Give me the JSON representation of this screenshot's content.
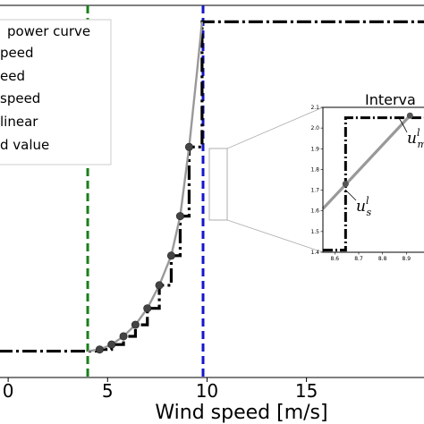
{
  "chart_data": [
    {
      "type": "line",
      "xlabel": "Wind speed [m/s]",
      "xlim": [
        -0.5,
        21
      ],
      "ylim": [
        -0.08,
        1.05
      ],
      "xticks": [
        "0",
        "5",
        "10",
        "15"
      ],
      "xtick_values": [
        0,
        5,
        10,
        15
      ],
      "grid": false,
      "legend": {
        "placement": "top-left",
        "entries": [
          "power curve",
          "peed",
          "eed",
          "speed",
          "linear",
          "d value"
        ]
      },
      "vlines": [
        {
          "x": 4,
          "color": "#1a7f1a",
          "style": "dashed"
        },
        {
          "x": 9.8,
          "color": "#1515cc",
          "style": "dashed"
        }
      ],
      "series": [
        {
          "style": "dashdot",
          "color": "#000000",
          "shape": "step",
          "x": [
            -0.5,
            4,
            4.6,
            4.6,
            5.2,
            5.2,
            5.8,
            5.8,
            6.4,
            6.4,
            7.0,
            7.0,
            7.6,
            7.6,
            8.2,
            8.2,
            8.65,
            8.65,
            9.1,
            9.1,
            9.75,
            9.75,
            21
          ],
          "y": [
            0,
            0,
            0,
            0.005,
            0.005,
            0.02,
            0.02,
            0.045,
            0.045,
            0.08,
            0.08,
            0.13,
            0.13,
            0.2,
            0.2,
            0.29,
            0.29,
            0.41,
            0.41,
            0.62,
            0.62,
            1.0,
            1.0
          ]
        },
        {
          "color": "#999999",
          "shape": "line",
          "x": [
            4,
            4.6,
            5.2,
            5.8,
            6.4,
            7.0,
            7.6,
            8.2,
            8.65,
            9.1,
            9.5,
            9.75
          ],
          "y": [
            0,
            0.005,
            0.02,
            0.045,
            0.08,
            0.13,
            0.2,
            0.29,
            0.41,
            0.62,
            0.85,
            1.0
          ]
        },
        {
          "style": "markers",
          "color": "#444444",
          "shape": "scatter",
          "x": [
            4.6,
            5.2,
            5.8,
            6.4,
            7.0,
            7.6,
            8.2,
            8.65,
            9.1
          ],
          "y": [
            0.005,
            0.02,
            0.045,
            0.08,
            0.13,
            0.2,
            0.29,
            0.41,
            0.62
          ]
        }
      ]
    },
    {
      "type": "line",
      "title": "Interva",
      "placement": "inset",
      "xlim": [
        8.55,
        9.0
      ],
      "ylim": [
        1.4,
        2.1
      ],
      "xticks": [
        "8.6",
        "8.7",
        "8.8",
        "8.9"
      ],
      "xtick_values": [
        8.6,
        8.7,
        8.8,
        8.9
      ],
      "yticks": [
        "1.4",
        "1.5",
        "1.6",
        "1.7",
        "1.8",
        "1.9",
        "2.0",
        "2.1"
      ],
      "ytick_values": [
        1.4,
        1.5,
        1.6,
        1.7,
        1.8,
        1.9,
        2.0,
        2.1
      ],
      "series": [
        {
          "style": "dashdot",
          "color": "#000000",
          "shape": "step",
          "x": [
            8.55,
            8.645,
            8.645,
            9.0
          ],
          "y": [
            1.41,
            1.41,
            2.05,
            2.05
          ]
        },
        {
          "color": "#999999",
          "shape": "line",
          "x": [
            8.55,
            8.915
          ],
          "y": [
            1.61,
            2.06
          ]
        }
      ],
      "points": [
        {
          "x": 8.645,
          "y": 1.73
        },
        {
          "x": 8.915,
          "y": 2.06
        }
      ],
      "annotations": [
        {
          "base": "u",
          "sup": "l",
          "sub": "s"
        },
        {
          "base": "u",
          "sup": "l",
          "sub": "m"
        }
      ]
    }
  ]
}
